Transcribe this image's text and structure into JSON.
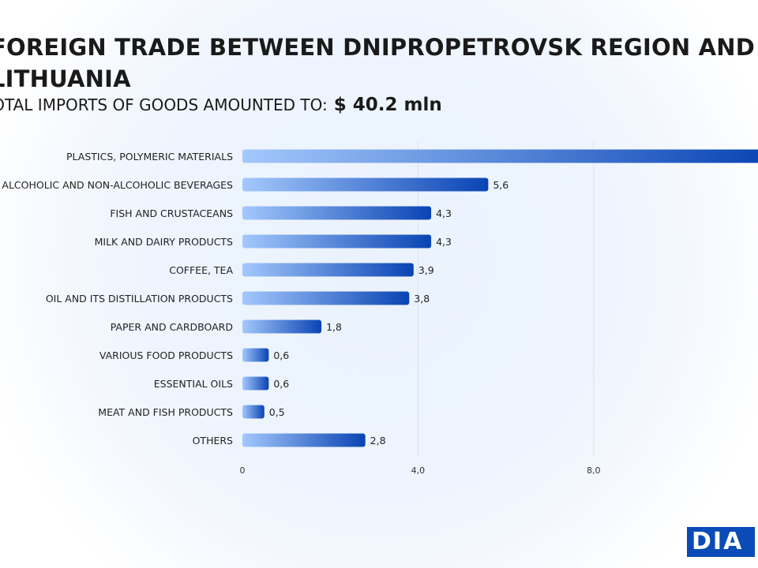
{
  "title": "FOREIGN TRADE BETWEEN DNIPROPETROVSK REGION AND LITHUANIA",
  "subtitle": {
    "label": "TOTAL IMPORTS OF GOODS AMOUNTED TO:",
    "value": "$ 40.2  mln"
  },
  "logo": "DIA",
  "colors": {
    "bar_start": "#a3c8fc",
    "bar_end": "#0a44b4"
  },
  "chart_data": {
    "type": "bar",
    "orientation": "horizontal",
    "categories": [
      "PLASTICS, POLYMERIC MATERIALS",
      "ALCOHOLIC AND NON-ALCOHOLIC BEVERAGES",
      "FISH AND CRUSTACEANS",
      "MILK AND DAIRY PRODUCTS",
      "COFFEE, TEA",
      "OIL AND ITS DISTILLATION PRODUCTS",
      "PAPER AND CARDBOARD",
      "VARIOUS FOOD PRODUCTS",
      "ESSENTIAL OILS",
      "MEAT AND FISH PRODUCTS",
      "OTHERS"
    ],
    "values": [
      12.0,
      5.6,
      4.3,
      4.3,
      3.9,
      3.8,
      1.8,
      0.6,
      0.6,
      0.5,
      2.8
    ],
    "labels": [
      null,
      "5,6",
      "4,3",
      "4,3",
      "3,9",
      "3,8",
      "1,8",
      "0,6",
      "0,6",
      "0,5",
      "2,8"
    ],
    "xticks": [
      {
        "v": 0,
        "label": "0"
      },
      {
        "v": 4,
        "label": "4,0"
      },
      {
        "v": 8,
        "label": "8,0"
      }
    ],
    "xlim": [
      0,
      12
    ],
    "grid": true,
    "unit": "$ mln"
  }
}
